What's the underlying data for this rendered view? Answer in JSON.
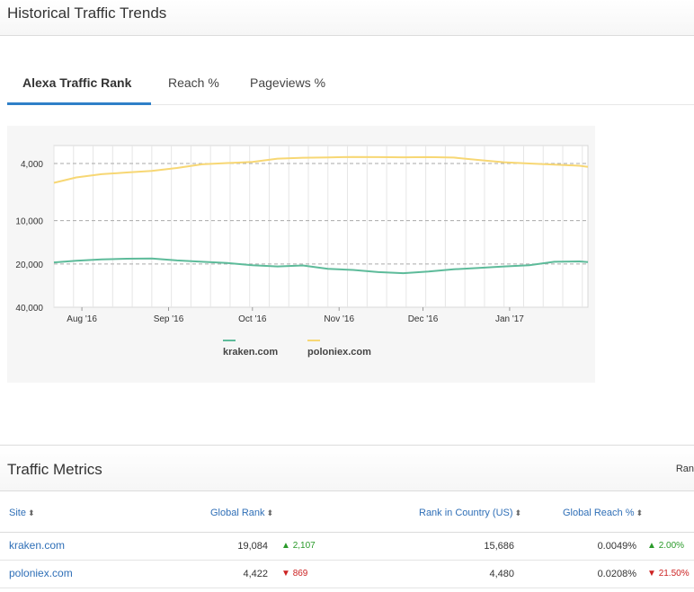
{
  "historical": {
    "title": "Historical Traffic Trends",
    "tabs": [
      "Alexa Traffic Rank",
      "Reach %",
      "Pageviews %"
    ]
  },
  "chart_data": {
    "type": "line",
    "y_scale": "log-inverted",
    "ylim": [
      40000,
      3000
    ],
    "y_ticks": [
      "4,000",
      "10,000",
      "20,000",
      "40,000"
    ],
    "y_tick_values": [
      4000,
      10000,
      20000,
      40000
    ],
    "x_ticks": [
      "Aug '16",
      "Sep '16",
      "Oct '16",
      "Nov '16",
      "Dec '16",
      "Jan '17"
    ],
    "x_tick_dates": [
      "2016-08-01",
      "2016-09-01",
      "2016-10-01",
      "2016-11-01",
      "2016-12-01",
      "2017-01-01"
    ],
    "xlim": [
      "2016-07-22",
      "2017-01-29"
    ],
    "grid": true,
    "legend": "bottom",
    "series": [
      {
        "name": "kraken.com",
        "color": "#5dbb9a",
        "x": [
          "2016-07-22",
          "2016-07-30",
          "2016-08-08",
          "2016-08-17",
          "2016-08-26",
          "2016-09-04",
          "2016-09-13",
          "2016-09-22",
          "2016-10-01",
          "2016-10-10",
          "2016-10-19",
          "2016-10-28",
          "2016-11-06",
          "2016-11-15",
          "2016-11-24",
          "2016-12-03",
          "2016-12-12",
          "2016-12-21",
          "2016-12-30",
          "2017-01-08",
          "2017-01-17",
          "2017-01-26",
          "2017-01-29"
        ],
        "values": [
          19500,
          19000,
          18600,
          18400,
          18300,
          18900,
          19300,
          19700,
          20400,
          20800,
          20500,
          21600,
          22000,
          22800,
          23200,
          22600,
          21800,
          21300,
          20800,
          20400,
          19300,
          19200,
          19400
        ]
      },
      {
        "name": "poloniex.com",
        "color": "#f7d774",
        "x": [
          "2016-07-22",
          "2016-07-30",
          "2016-08-08",
          "2016-08-17",
          "2016-08-26",
          "2016-09-04",
          "2016-09-13",
          "2016-09-22",
          "2016-10-01",
          "2016-10-10",
          "2016-10-19",
          "2016-10-28",
          "2016-11-06",
          "2016-11-15",
          "2016-11-24",
          "2016-12-03",
          "2016-12-12",
          "2016-12-21",
          "2016-12-30",
          "2017-01-08",
          "2017-01-17",
          "2017-01-26",
          "2017-01-29"
        ],
        "values": [
          5450,
          5000,
          4750,
          4620,
          4500,
          4300,
          4050,
          3970,
          3900,
          3700,
          3650,
          3630,
          3600,
          3610,
          3620,
          3610,
          3640,
          3780,
          3920,
          4000,
          4070,
          4150,
          4220
        ]
      }
    ]
  },
  "metrics": {
    "title": "Traffic Metrics",
    "cut_label": "Ran",
    "columns": {
      "site": "Site",
      "global_rank": "Global Rank",
      "rank_country": "Rank in Country (US)",
      "global_reach": "Global Reach %"
    },
    "sort_icon": "sort-icon",
    "rows": [
      {
        "site": "kraken.com",
        "global_rank": "19,084",
        "rank_delta": "2,107",
        "rank_delta_dir": "up",
        "rank_country": "15,686",
        "global_reach": "0.0049%",
        "reach_delta": "2.00%",
        "reach_delta_dir": "up"
      },
      {
        "site": "poloniex.com",
        "global_rank": "4,422",
        "rank_delta": "869",
        "rank_delta_dir": "down",
        "rank_country": "4,480",
        "global_reach": "0.0208%",
        "reach_delta": "21.50%",
        "reach_delta_dir": "down"
      }
    ]
  }
}
